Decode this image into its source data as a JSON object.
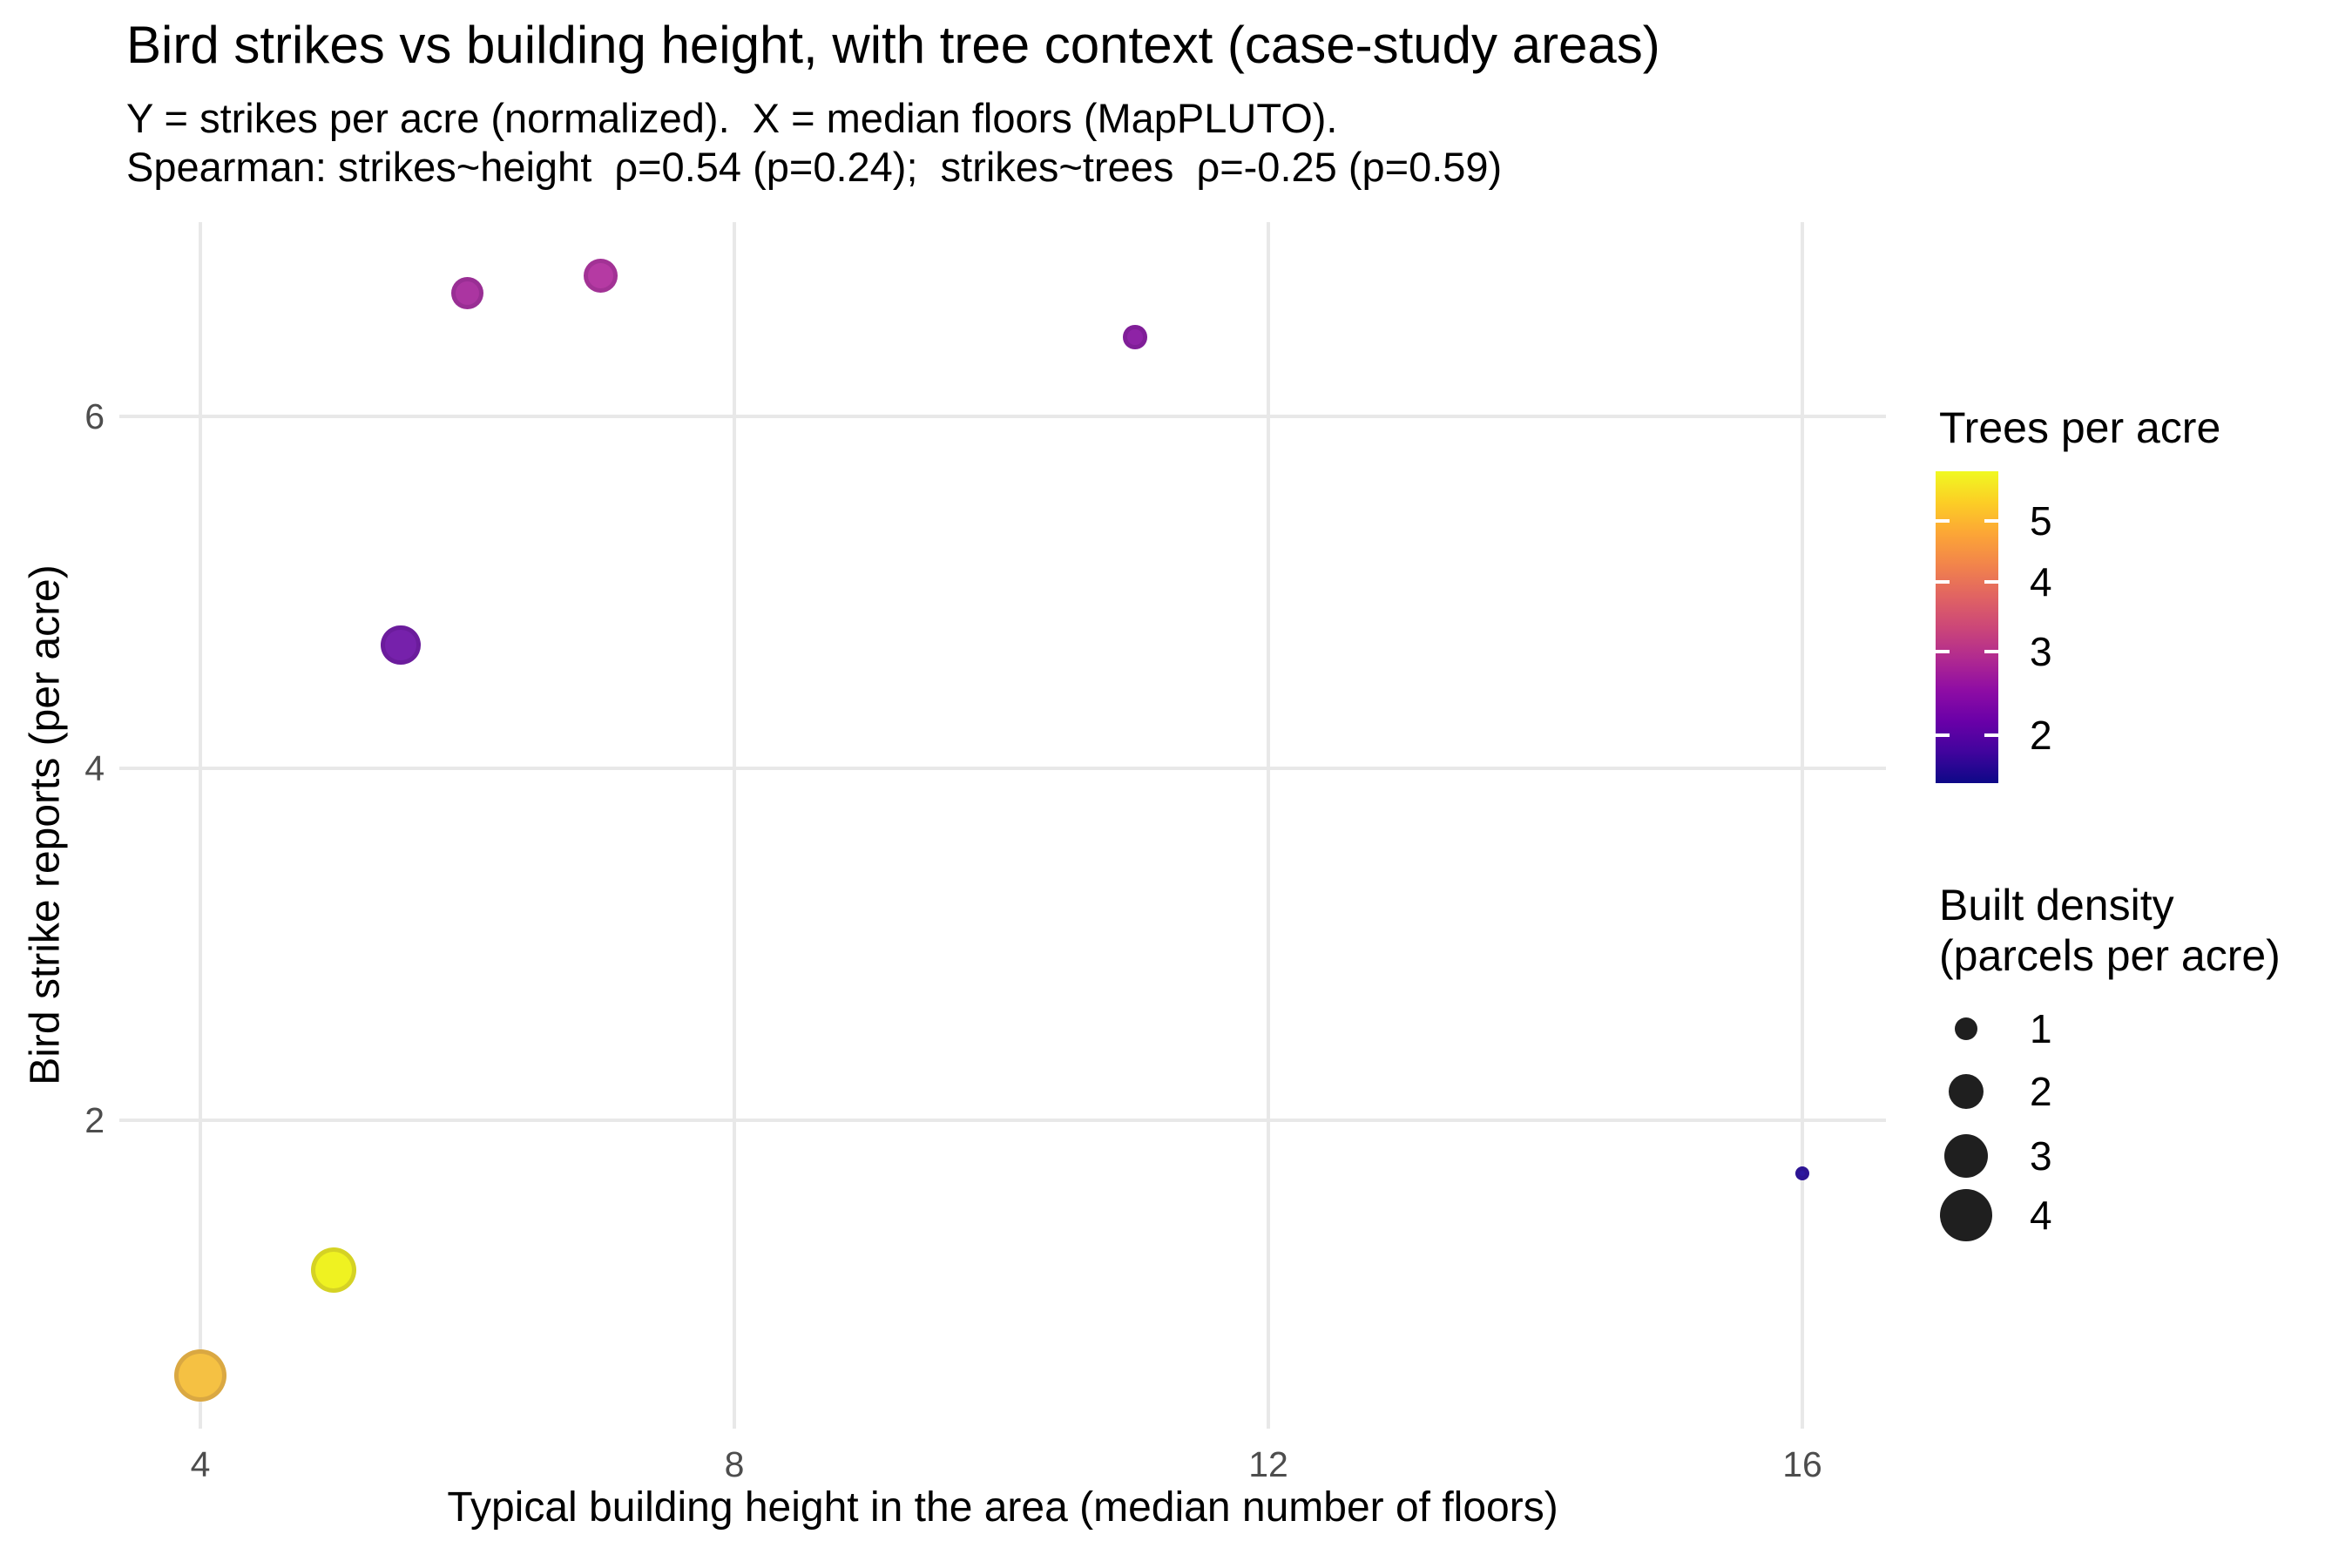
{
  "figure": {
    "title": "Bird strikes vs building height, with tree context (case-study areas)",
    "subtitle_line1": "Y = strikes per acre (normalized).  X = median floors (MapPLUTO).",
    "subtitle_line2": "Spearman: strikes~height  ρ=0.54 (p=0.24);  strikes~trees  ρ=-0.25 (p=0.59)"
  },
  "chart_data": {
    "type": "scatter",
    "title": "Bird strikes vs building height, with tree context (case-study areas)",
    "xlabel": "Typical building height in the area (median number of floors)",
    "ylabel": "Bird strike reports (per acre)",
    "x_ticks": [
      4,
      8,
      12,
      16
    ],
    "y_ticks": [
      2,
      4,
      6
    ],
    "xlim": [
      3.4,
      16.65
    ],
    "ylim": [
      0.25,
      7.1
    ],
    "grid": "major-only",
    "background": "#ffffff",
    "gridline_color": "#E8E8E8",
    "tick_label_color": "#4D4D4D",
    "points": [
      {
        "x": 4,
        "y": 0.55,
        "trees_per_acre": 5.2,
        "parcels_per_acre": 4.0,
        "color": "#F5C143"
      },
      {
        "x": 5,
        "y": 1.15,
        "trees_per_acre": 5.8,
        "parcels_per_acre": 3.1,
        "color": "#EFF221"
      },
      {
        "x": 5.5,
        "y": 4.7,
        "trees_per_acre": 2.2,
        "parcels_per_acre": 2.5,
        "color": "#7621AB"
      },
      {
        "x": 6,
        "y": 6.7,
        "trees_per_acre": 2.9,
        "parcels_per_acre": 1.8,
        "color": "#AB35A1"
      },
      {
        "x": 7,
        "y": 6.8,
        "trees_per_acre": 3.1,
        "parcels_per_acre": 1.9,
        "color": "#B53AA3"
      },
      {
        "x": 11,
        "y": 6.45,
        "trees_per_acre": 2.5,
        "parcels_per_acre": 1.1,
        "color": "#8E23A6"
      },
      {
        "x": 16,
        "y": 1.7,
        "trees_per_acre": 1.6,
        "parcels_per_acre": 0.5,
        "color": "#2D18A0"
      }
    ],
    "color_legend": {
      "title": "Trees per acre",
      "palette_name": "plasma",
      "trans": "sqrt",
      "domain": [
        1.51,
        5.88
      ],
      "ticks": [
        5,
        4,
        3,
        2
      ],
      "palette_stops_top_to_bottom": [
        "#F0F921",
        "#FCCE25",
        "#FCA636",
        "#F2844B",
        "#E16462",
        "#CC4778",
        "#B12A90",
        "#8F0DA4",
        "#6A00A8",
        "#41049D",
        "#0D0887"
      ]
    },
    "size_legend": {
      "title_line1": "Built density",
      "title_line2": "(parcels per acre)",
      "ticks": [
        1,
        2,
        3,
        4
      ],
      "symbol_color": "#1F1F1F"
    }
  }
}
